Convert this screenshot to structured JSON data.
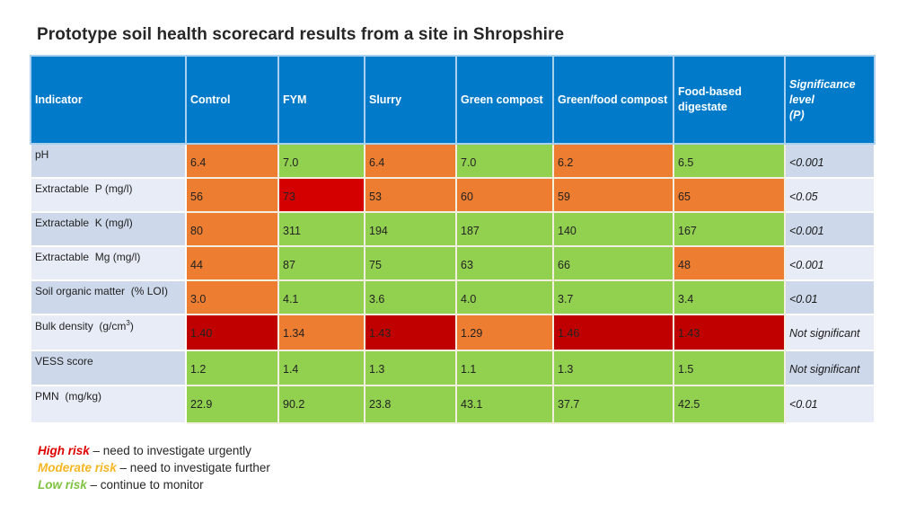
{
  "title": "Prototype soil health scorecard results from a site in Shropshire",
  "colors": {
    "header_bg": "#007ac9",
    "low_risk": "#92d050",
    "moderate_risk": "#ed7d31",
    "high_risk": "#c00000",
    "legend_high": "#e00000",
    "legend_moderate": "#f5b622",
    "legend_low": "#7fc241"
  },
  "table": {
    "headers": {
      "indicator": "Indicator",
      "control": "Control",
      "fym": "FYM",
      "slurry": "Slurry",
      "green_compost": "Green compost",
      "green_food_compost": "Green/food compost",
      "food_digestate": "Food-based digestate",
      "significance_line1": "Significance",
      "significance_line2": "level",
      "significance_line3": "(P)"
    },
    "rows": [
      {
        "indicator": "pH",
        "values": [
          "6.4",
          "7.0",
          "6.4",
          "7.0",
          "6.2",
          "6.5"
        ],
        "risk": [
          "moderate",
          "low",
          "moderate",
          "low",
          "moderate",
          "low"
        ],
        "significance": "<0.001"
      },
      {
        "indicator": "Extractable  P (mg/l)",
        "values": [
          "56",
          "73",
          "53",
          "60",
          "59",
          "65"
        ],
        "risk": [
          "moderate",
          "high",
          "moderate",
          "moderate",
          "moderate",
          "moderate"
        ],
        "significance": "<0.05"
      },
      {
        "indicator": "Extractable  K (mg/l)",
        "values": [
          "80",
          "311",
          "194",
          "187",
          "140",
          "167"
        ],
        "risk": [
          "moderate",
          "low",
          "low",
          "low",
          "low",
          "low"
        ],
        "significance": "<0.001"
      },
      {
        "indicator": "Extractable  Mg (mg/l)",
        "values": [
          "44",
          "87",
          "75",
          "63",
          "66",
          "48"
        ],
        "risk": [
          "moderate",
          "low",
          "low",
          "low",
          "low",
          "moderate"
        ],
        "significance": "<0.001"
      },
      {
        "indicator": "Soil organic matter  (% LOI)",
        "values": [
          "3.0",
          "4.1",
          "3.6",
          "4.0",
          "3.7",
          "3.4"
        ],
        "risk": [
          "moderate",
          "low",
          "low",
          "low",
          "low",
          "low"
        ],
        "significance": "<0.01"
      },
      {
        "indicator": "Bulk density  (g/cm",
        "indicator_sup": "3",
        "indicator_end": ")",
        "values": [
          "1.40",
          "1.34",
          "1.43",
          "1.29",
          "1.46",
          "1.43"
        ],
        "risk": [
          "high",
          "moderate",
          "high",
          "moderate",
          "high",
          "high"
        ],
        "significance": "Not significant"
      },
      {
        "indicator": "VESS score",
        "values": [
          "1.2",
          "1.4",
          "1.3",
          "1.1",
          "1.3",
          "1.5"
        ],
        "risk": [
          "low",
          "low",
          "low",
          "low",
          "low",
          "low"
        ],
        "significance": "Not significant"
      },
      {
        "indicator": "PMN  (mg/kg)",
        "values": [
          "22.9",
          "90.2",
          "23.8",
          "43.1",
          "37.7",
          "42.5"
        ],
        "risk": [
          "low",
          "low",
          "low",
          "low",
          "low",
          "low"
        ],
        "significance": "<0.01"
      }
    ]
  },
  "legend": [
    {
      "label": "High risk",
      "text": " – need to investigate urgently"
    },
    {
      "label": "Moderate risk",
      "text": " – need to investigate further"
    },
    {
      "label": "Low risk",
      "text": " – continue to monitor"
    }
  ]
}
